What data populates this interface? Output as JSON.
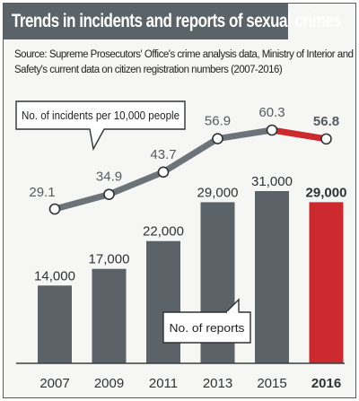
{
  "title": "Trends in incidents and reports of sexual crimes",
  "source": "Source: Supreme Prosecutors' Office's crime analysis data, Ministry of Interior and Safety's current data on citizen registration numbers (2007-2016)",
  "colors": {
    "bar": "#5c6368",
    "highlight": "#cc2a2f",
    "line": "#6d7479",
    "background": "#f6f6f5",
    "title_bg": "#5c6368"
  },
  "chart_data": [
    {
      "type": "line",
      "x": [
        "2007",
        "2009",
        "2011",
        "2013",
        "2015",
        "2016"
      ],
      "values": [
        29.1,
        34.9,
        43.7,
        56.9,
        60.3,
        56.8
      ],
      "value_labels": [
        "29.1",
        "34.9",
        "43.7",
        "56.9",
        "60.3",
        "56.8"
      ],
      "callout": "No. of incidents per 10,000 people",
      "highlight_last": true
    },
    {
      "type": "bar",
      "categories": [
        "2007",
        "2009",
        "2011",
        "2013",
        "2015",
        "2016"
      ],
      "values": [
        14000,
        17000,
        22000,
        29000,
        31000,
        29000
      ],
      "value_labels": [
        "14,000",
        "17,000",
        "22,000",
        "29,000",
        "31,000",
        "29,000"
      ],
      "callout": "No. of reports",
      "highlight_last": true
    }
  ]
}
